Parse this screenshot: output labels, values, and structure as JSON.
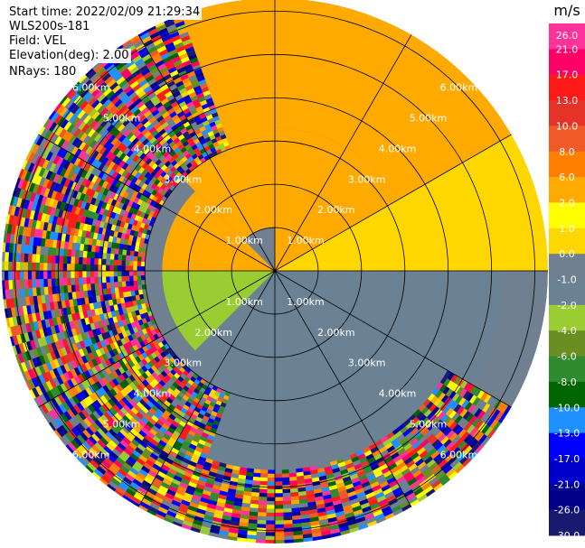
{
  "info": {
    "start_time": "Start time: 2022/02/09 21:29:34",
    "instrument": "WLS200s-181",
    "field": "Field: VEL",
    "elevation": "Elevation(deg): 2.00",
    "nrays": "NRays: 180"
  },
  "colorbar": {
    "unit": "m/s",
    "tick_labels": [
      "26.0",
      "21.0",
      "17.0",
      "13.0",
      "10.0",
      "8.0",
      "6.0",
      "2.0",
      "1.0",
      "0.0",
      "-1.0",
      "-2.0",
      "-4.0",
      "-6.0",
      "-8.0",
      "-10.0",
      "-13.0",
      "-17.0",
      "-21.0",
      "-26.0",
      "-30.0"
    ],
    "bands": [
      "#ff3399",
      "#ff0066",
      "#ff1a1a",
      "#e6332a",
      "#f05a28",
      "#ff7f00",
      "#ffaa00",
      "#ffff00",
      "#ffd700",
      "#708090",
      "#6a8294",
      "#9acd32",
      "#6b8e23",
      "#2e8b2e",
      "#006400",
      "#1e90ff",
      "#0000ff",
      "#0000cd",
      "#00008b",
      "#191970"
    ]
  },
  "chart_data": {
    "type": "heatmap",
    "projection": "polar-ppi",
    "field": "VEL",
    "units": "m/s",
    "elevation_deg": 2.0,
    "nrays": 180,
    "range_ring_labels": [
      "1.00km",
      "2.00km",
      "3.00km",
      "4.00km",
      "5.00km",
      "6.00km"
    ],
    "range_rings_km": [
      1,
      2,
      3,
      4,
      5,
      6
    ],
    "max_range_km": 6.3,
    "color_levels": [
      -30,
      -26,
      -21,
      -17,
      -13,
      -10,
      -8,
      -6,
      -4,
      -2,
      -1,
      0,
      1,
      2,
      6,
      8,
      10,
      13,
      17,
      21,
      26
    ],
    "sectors": [
      {
        "az_from": 315,
        "az_to": 360,
        "r_from_km": 0,
        "r_to_km": 6.3,
        "velocity": 2.5
      },
      {
        "az_from": 0,
        "az_to": 60,
        "r_from_km": 0,
        "r_to_km": 3.3,
        "velocity": 2.5
      },
      {
        "az_from": 0,
        "az_to": 60,
        "r_from_km": 3.3,
        "r_to_km": 6.3,
        "velocity": 3.0
      },
      {
        "az_from": 60,
        "az_to": 90,
        "r_from_km": 0,
        "r_to_km": 6.3,
        "velocity": 0.0
      },
      {
        "az_from": 90,
        "az_to": 150,
        "r_from_km": 0,
        "r_to_km": 5.3,
        "velocity": -1.5
      },
      {
        "az_from": 150,
        "az_to": 180,
        "r_from_km": 0,
        "r_to_km": 4.0,
        "velocity": -1.5
      },
      {
        "az_from": 180,
        "az_to": 225,
        "r_from_km": 0,
        "r_to_km": 4.8,
        "velocity": -1.5
      },
      {
        "az_from": 225,
        "az_to": 270,
        "r_from_km": 0,
        "r_to_km": 2.6,
        "velocity": -2.5
      },
      {
        "az_from": 270,
        "az_to": 315,
        "r_from_km": 0,
        "r_to_km": 2.6,
        "velocity": 2.5
      },
      {
        "az_from": 315,
        "az_to": 360,
        "r_from_km": 0,
        "r_to_km": 1.0,
        "velocity": -0.5
      }
    ],
    "noise_sectors": [
      {
        "az_from": 200,
        "az_to": 340,
        "r_from_km": 3.0,
        "r_to_km": 6.3
      },
      {
        "az_from": 120,
        "az_to": 200,
        "r_from_km": 4.6,
        "r_to_km": 6.3
      }
    ]
  }
}
